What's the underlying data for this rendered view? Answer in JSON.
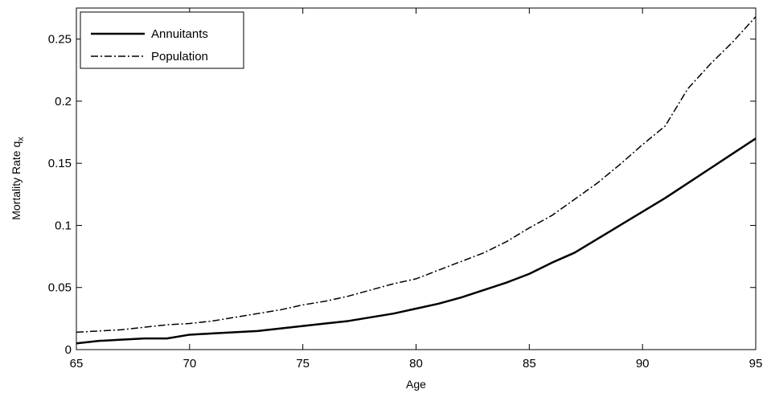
{
  "chart_data": {
    "type": "line",
    "xlabel": "Age",
    "ylabel": "Mortality Rate q",
    "ylabel_subscript": "x",
    "xlim": [
      65,
      95
    ],
    "ylim": [
      0,
      0.275
    ],
    "x_ticks": [
      "65",
      "70",
      "75",
      "80",
      "85",
      "90",
      "95"
    ],
    "y_ticks": [
      "0",
      "0.05",
      "0.1",
      "0.15",
      "0.2",
      "0.25"
    ],
    "legend_position": "top-left",
    "grid": false,
    "x": [
      65,
      66,
      67,
      68,
      69,
      70,
      71,
      72,
      73,
      74,
      75,
      76,
      77,
      78,
      79,
      80,
      81,
      82,
      83,
      84,
      85,
      86,
      87,
      88,
      89,
      90,
      91,
      92,
      93,
      94,
      95
    ],
    "series": [
      {
        "name": "Annuitants",
        "style": "solid",
        "color": "#000000",
        "values": [
          0.005,
          0.007,
          0.008,
          0.009,
          0.009,
          0.012,
          0.013,
          0.014,
          0.015,
          0.017,
          0.019,
          0.021,
          0.023,
          0.026,
          0.029,
          0.033,
          0.037,
          0.042,
          0.048,
          0.054,
          0.061,
          0.07,
          0.078,
          0.089,
          0.1,
          0.111,
          0.122,
          0.134,
          0.146,
          0.158,
          0.17
        ]
      },
      {
        "name": "Population",
        "style": "dashdot",
        "color": "#000000",
        "values": [
          0.014,
          0.015,
          0.016,
          0.018,
          0.02,
          0.021,
          0.023,
          0.026,
          0.029,
          0.032,
          0.036,
          0.039,
          0.043,
          0.048,
          0.053,
          0.057,
          0.064,
          0.071,
          0.078,
          0.087,
          0.098,
          0.108,
          0.121,
          0.134,
          0.149,
          0.165,
          0.18,
          0.21,
          0.23,
          0.248,
          0.268
        ]
      }
    ]
  }
}
